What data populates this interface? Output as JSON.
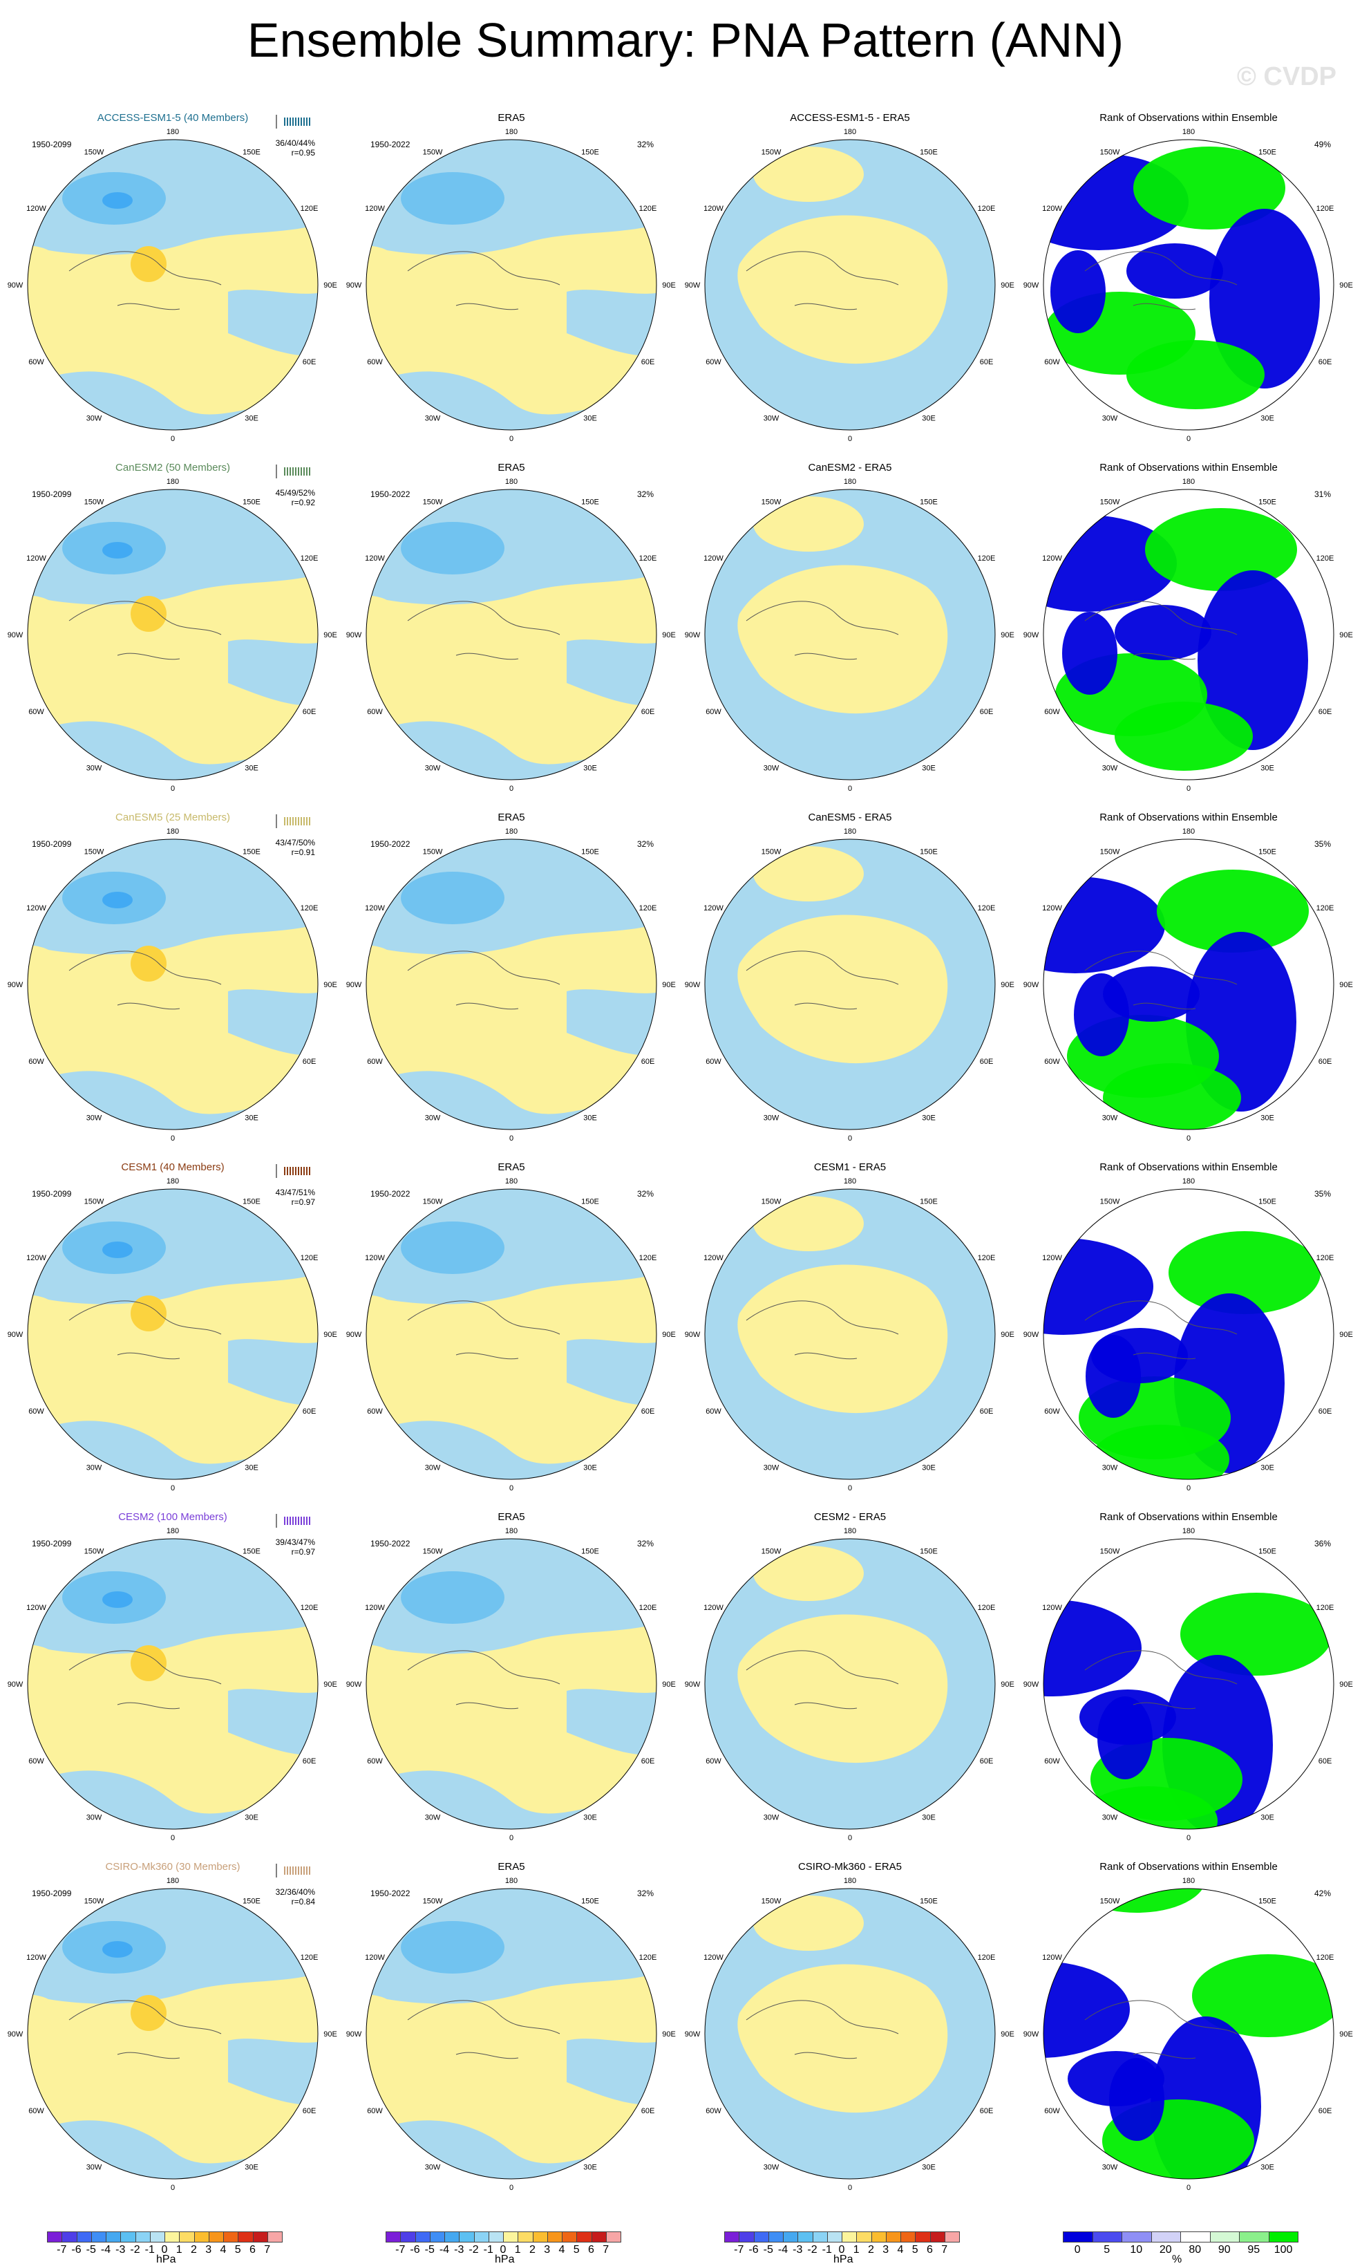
{
  "title": "Ensemble Summary: PNA Pattern (ANN)",
  "watermark": "© CVDP",
  "column_titles": [
    "ERA5",
    "Rank of Observations within Ensemble"
  ],
  "obs_period": "1950-2022",
  "obs_pct": "32%",
  "model_period": "1950-2099",
  "rows": [
    {
      "model": "ACCESS-ESM1-5 (40 Members)",
      "color": "#1d6f8f",
      "stats": "36/40/44%",
      "r": "r=0.95",
      "diff": "ACCESS-ESM1-5 - ERA5",
      "rank_pct": "49%"
    },
    {
      "model": "CanESM2 (50 Members)",
      "color": "#5a8a5a",
      "stats": "45/49/52%",
      "r": "r=0.92",
      "diff": "CanESM2 - ERA5",
      "rank_pct": "31%"
    },
    {
      "model": "CanESM5 (25 Members)",
      "color": "#c7b96a",
      "stats": "43/47/50%",
      "r": "r=0.91",
      "diff": "CanESM5 - ERA5",
      "rank_pct": "35%"
    },
    {
      "model": "CESM1 (40 Members)",
      "color": "#8a3b12",
      "stats": "43/47/51%",
      "r": "r=0.97",
      "diff": "CESM1 - ERA5",
      "rank_pct": "35%"
    },
    {
      "model": "CESM2 (100 Members)",
      "color": "#7a3fd8",
      "stats": "39/43/47%",
      "r": "r=0.97",
      "diff": "CESM2 - ERA5",
      "rank_pct": "36%"
    },
    {
      "model": "CSIRO-Mk360 (30 Members)",
      "color": "#c8a07a",
      "stats": "32/36/40%",
      "r": "r=0.84",
      "diff": "CSIRO-Mk360 - ERA5",
      "rank_pct": "42%"
    }
  ],
  "lon_labels": [
    "180",
    "150E",
    "120E",
    "90E",
    "60E",
    "30E",
    "0",
    "30W",
    "60W",
    "90W",
    "120W",
    "150W"
  ],
  "colorbar_hpa": {
    "ticks": [
      "-7",
      "-6",
      "-5",
      "-4",
      "-3",
      "-2",
      "-1",
      "0",
      "1",
      "2",
      "3",
      "4",
      "5",
      "6",
      "7"
    ],
    "unit": "hPa",
    "colors": [
      "#7b1fd8",
      "#4f3fe8",
      "#3f6af5",
      "#3f8ef5",
      "#45a8f0",
      "#5cc0f2",
      "#8bd3f5",
      "#b9e3f3",
      "#fcf59c",
      "#fddc64",
      "#fbbd2f",
      "#f7951a",
      "#ef6615",
      "#de3015",
      "#c61c1c",
      "#f7a6a6"
    ]
  },
  "colorbar_rank": {
    "ticks": [
      "0",
      "5",
      "10",
      "20",
      "80",
      "90",
      "95",
      "100"
    ],
    "unit": "%",
    "colors": [
      "#0000dd",
      "#4b4bf0",
      "#8f8ff5",
      "#d2d2f7",
      "#ffffff",
      "#d4f9d4",
      "#8bf08b",
      "#00ee00"
    ]
  },
  "fill_colors": {
    "neg_light": "#a9d9ef",
    "neg_mid": "#71c3f0",
    "neg_strong": "#42aaf3",
    "pos_light": "#fcf29c",
    "pos_mid": "#fbd33f",
    "blue_rank": "#0000dd",
    "green_rank": "#00ee00"
  }
}
